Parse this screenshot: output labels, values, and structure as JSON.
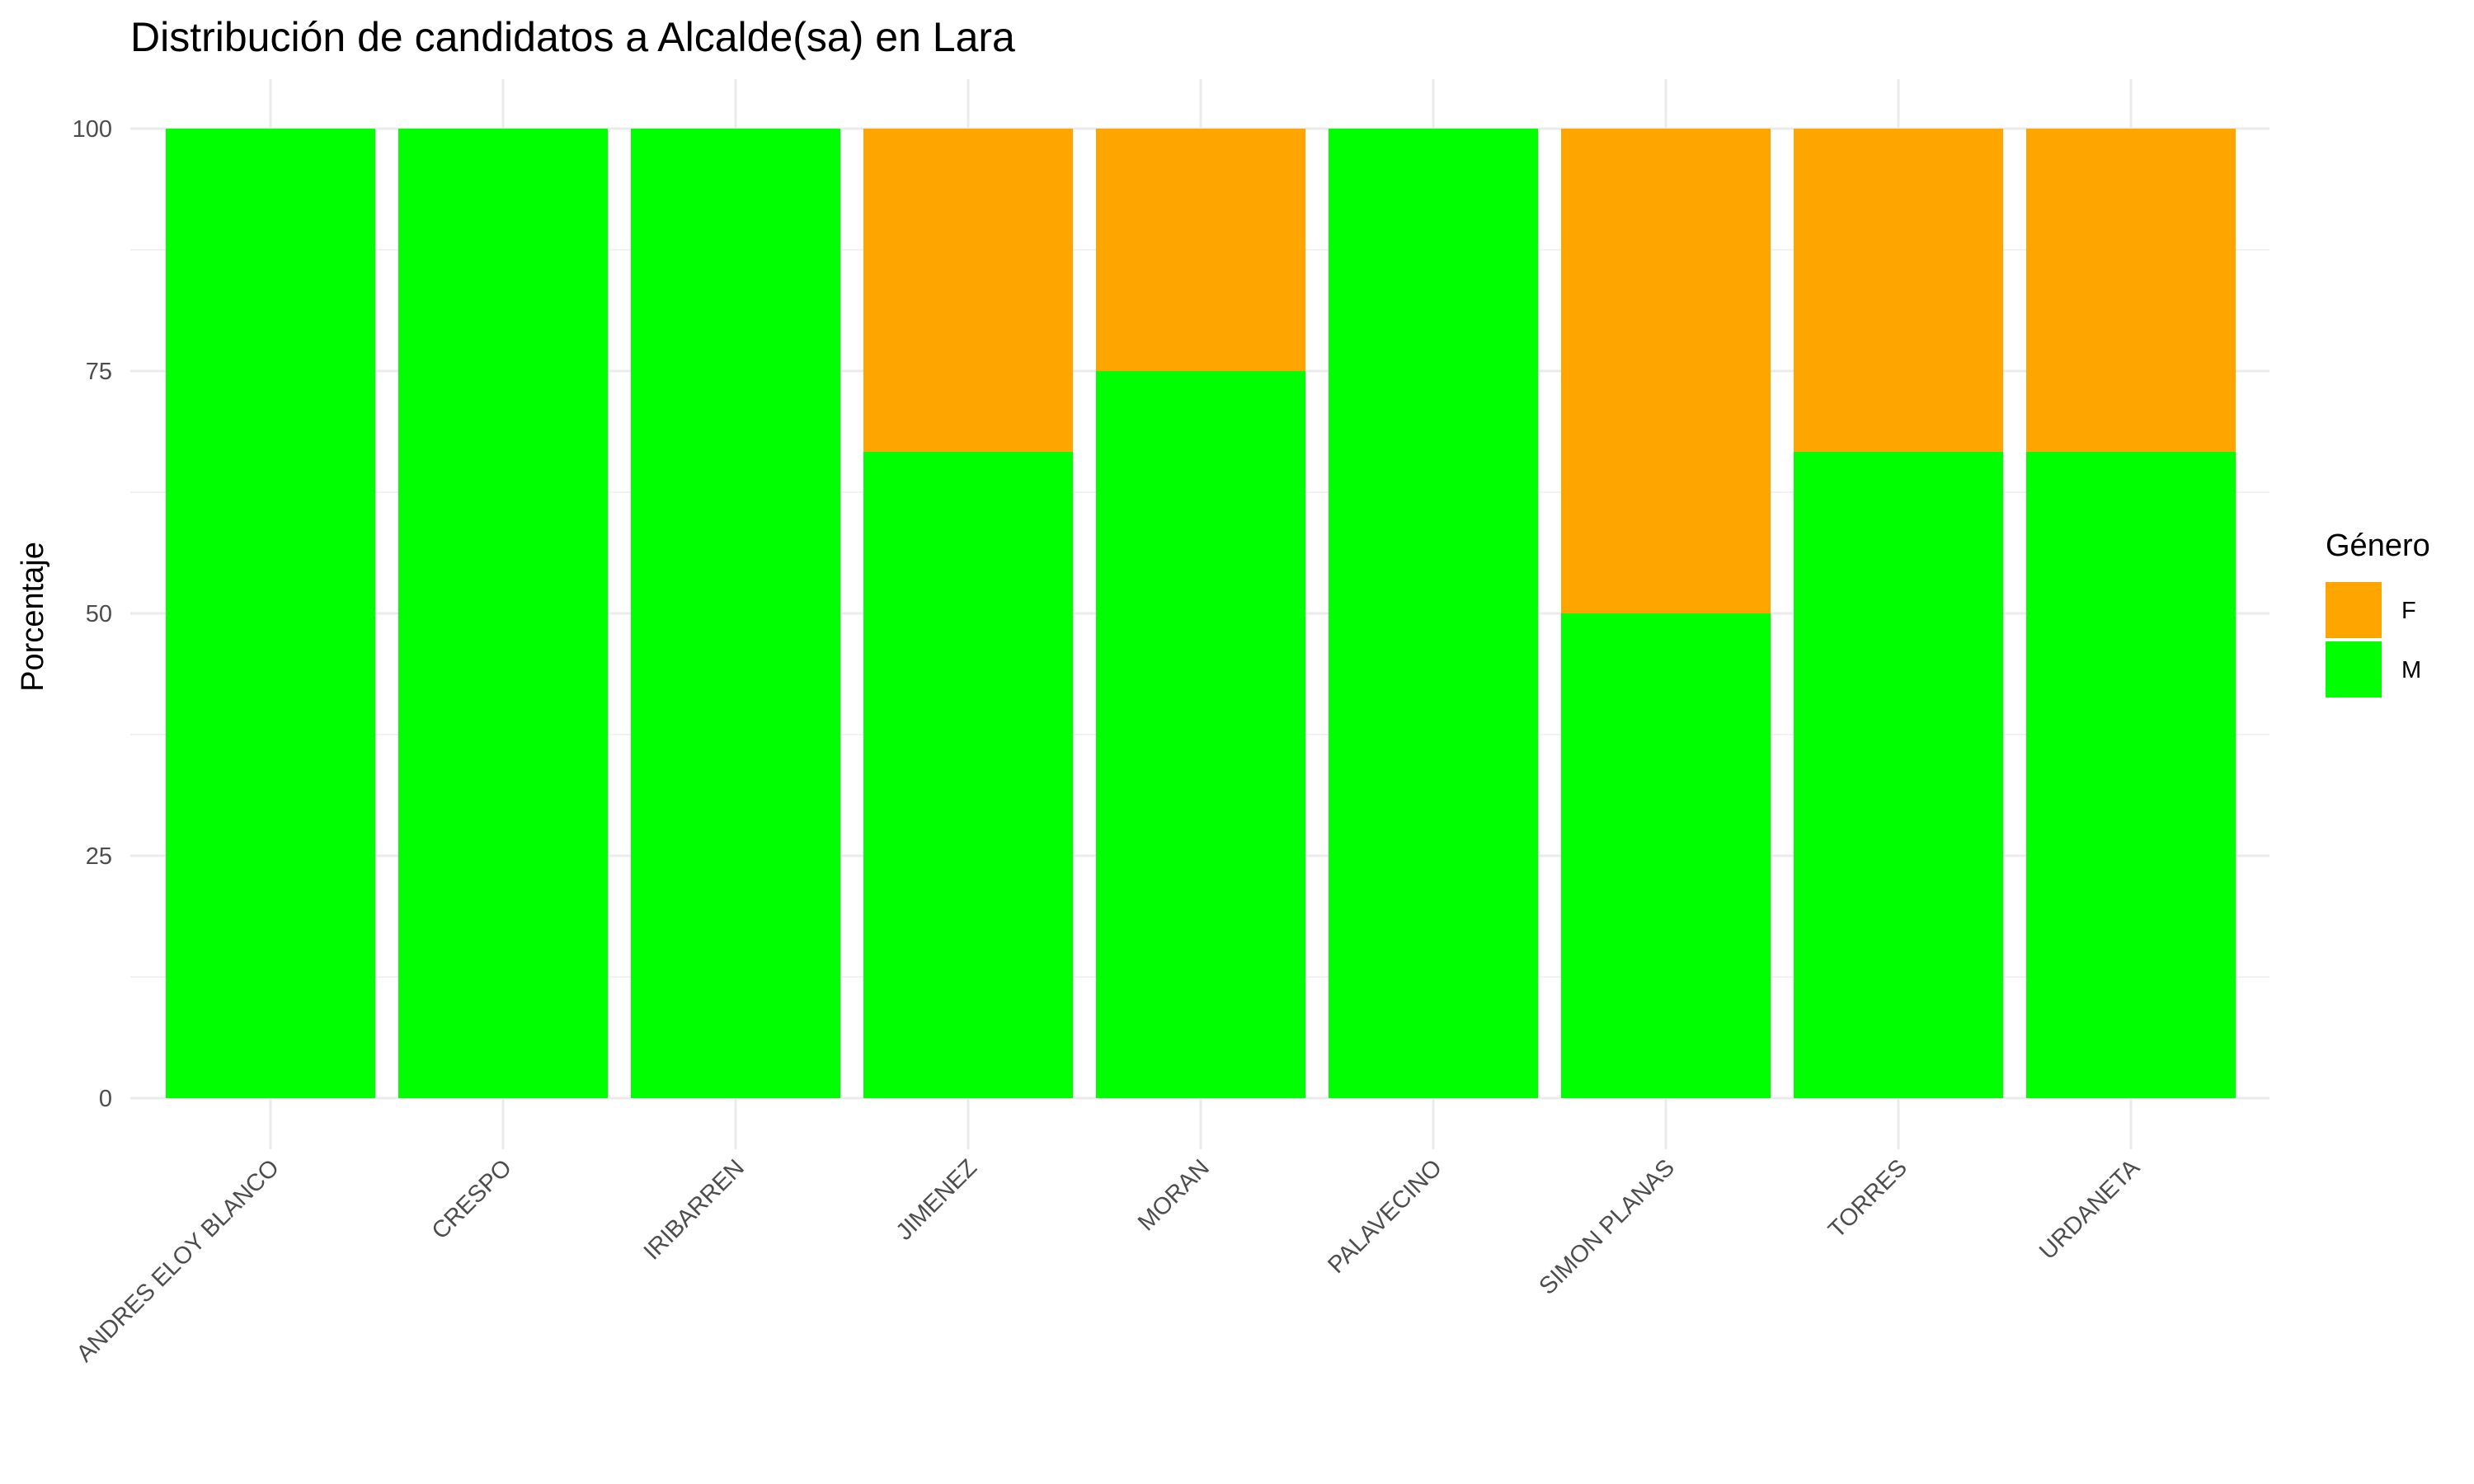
{
  "chart_data": {
    "type": "bar",
    "stacked": true,
    "title": "Distribución de candidatos a Alcalde(sa) en Lara",
    "xlabel": "",
    "ylabel": "Porcentaje",
    "ylim": [
      0,
      100
    ],
    "yticks": [
      0,
      25,
      50,
      75,
      100
    ],
    "grid": true,
    "legend_position": "right",
    "legend_title": "Género",
    "categories": [
      "ANDRES ELOY BLANCO",
      "CRESPO",
      "IRIBARREN",
      "JIMENEZ",
      "MORAN",
      "PALAVECINO",
      "SIMON PLANAS",
      "TORRES",
      "URDANETA"
    ],
    "series": [
      {
        "name": "F",
        "color": "#FFA500",
        "values": [
          0,
          0,
          0,
          33.33,
          25,
          0,
          50,
          33.33,
          33.33
        ]
      },
      {
        "name": "M",
        "color": "#00FF00",
        "values": [
          100,
          100,
          100,
          66.67,
          75,
          100,
          50,
          66.67,
          66.67
        ]
      }
    ]
  }
}
